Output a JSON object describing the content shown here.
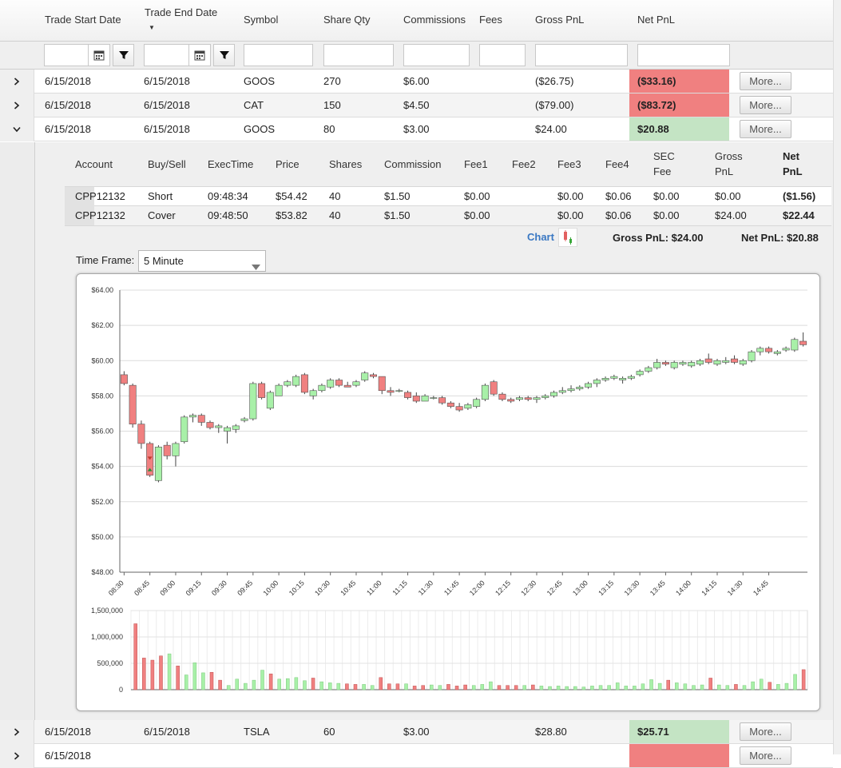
{
  "columns": {
    "trade_start": "Trade Start Date",
    "trade_end": "Trade End Date",
    "symbol": "Symbol",
    "share_qty": "Share Qty",
    "commissions": "Commissions",
    "fees": "Fees",
    "gross_pnl": "Gross PnL",
    "net_pnl": "Net PnL"
  },
  "rows": [
    {
      "start": "6/15/2018",
      "end": "6/15/2018",
      "symbol": "GOOS",
      "qty": "270",
      "comm": "$6.00",
      "fees": "",
      "gross": "($26.75)",
      "net": "($33.16)",
      "more": "More..."
    },
    {
      "start": "6/15/2018",
      "end": "6/15/2018",
      "symbol": "CAT",
      "qty": "150",
      "comm": "$4.50",
      "fees": "",
      "gross": "($79.00)",
      "net": "($83.72)",
      "more": "More..."
    },
    {
      "start": "6/15/2018",
      "end": "6/15/2018",
      "symbol": "GOOS",
      "qty": "80",
      "comm": "$3.00",
      "fees": "",
      "gross": "$24.00",
      "net": "$20.88",
      "more": "More..."
    },
    {
      "start": "6/15/2018",
      "end": "6/15/2018",
      "symbol": "TSLA",
      "qty": "60",
      "comm": "$3.00",
      "fees": "",
      "gross": "$28.80",
      "net": "$25.71",
      "more": "More..."
    },
    {
      "start": "6/15/2018",
      "end": "",
      "symbol": "",
      "qty": "",
      "comm": "",
      "fees": "",
      "gross": "",
      "net": "",
      "more": "More..."
    }
  ],
  "detail": {
    "headers": {
      "account": "Account",
      "buysell": "Buy/Sell",
      "exectime": "ExecTime",
      "price": "Price",
      "shares": "Shares",
      "commission": "Commission",
      "fee1": "Fee1",
      "fee2": "Fee2",
      "fee3": "Fee3",
      "fee4": "Fee4",
      "sec_fee_1": "SEC",
      "sec_fee_2": "Fee",
      "gross_1": "Gross",
      "gross_2": "PnL",
      "net_1": "Net",
      "net_2": "PnL"
    },
    "executions": [
      {
        "account": "CPP12132",
        "side": "Short",
        "time": "09:48:34",
        "price": "$54.42",
        "shares": "40",
        "commission": "$1.50",
        "fee1": "$0.00",
        "fee2": "",
        "fee3": "$0.00",
        "fee4": "$0.06",
        "sec": "$0.00",
        "gross": "$0.00",
        "net": "($1.56)"
      },
      {
        "account": "CPP12132",
        "side": "Cover",
        "time": "09:48:50",
        "price": "$53.82",
        "shares": "40",
        "commission": "$1.50",
        "fee1": "$0.00",
        "fee2": "",
        "fee3": "$0.00",
        "fee4": "$0.06",
        "sec": "$0.00",
        "gross": "$24.00",
        "net": "$22.44"
      }
    ],
    "chart_link": "Chart",
    "gross_summary": "Gross PnL: $24.00",
    "net_summary": "Net PnL: $20.88",
    "timeframe_label": "Time Frame:",
    "timeframe_value": "5 Minute"
  },
  "colors": {
    "loss": "#f08080",
    "gain": "#c4e4c4",
    "candle_up": "#a8f0a8",
    "candle_down": "#f08080",
    "link": "#3a78c3"
  },
  "chart_data": {
    "type": "candlestick",
    "price_axis": {
      "min": 48,
      "max": 64,
      "ticks": [
        "$48.00",
        "$50.00",
        "$52.00",
        "$54.00",
        "$56.00",
        "$58.00",
        "$60.00",
        "$62.00",
        "$64.00"
      ]
    },
    "volume_axis": {
      "min": 0,
      "max": 1500000,
      "ticks": [
        "0",
        "500,000",
        "1,000,000",
        "1,500,000"
      ]
    },
    "time_labels": [
      "08:30",
      "08:45",
      "09:00",
      "09:15",
      "09:30",
      "09:45",
      "10:00",
      "10:15",
      "10:30",
      "10:45",
      "11:00",
      "11:15",
      "11:30",
      "11:45",
      "12:00",
      "12:15",
      "12:30",
      "12:45",
      "13:00",
      "13:15",
      "13:30",
      "13:45",
      "14:00",
      "14:15",
      "14:30",
      "14:45"
    ],
    "grid": true,
    "candles": [
      [
        59.2,
        59.4,
        58.6,
        58.7
      ],
      [
        58.6,
        58.7,
        56.2,
        56.4
      ],
      [
        56.4,
        56.6,
        55.0,
        55.3
      ],
      [
        55.3,
        55.4,
        53.4,
        53.5
      ],
      [
        53.2,
        55.2,
        53.1,
        55.1
      ],
      [
        55.2,
        55.4,
        54.4,
        54.6
      ],
      [
        54.6,
        55.4,
        54.0,
        55.3
      ],
      [
        55.4,
        56.9,
        55.3,
        56.8
      ],
      [
        56.8,
        57.0,
        56.5,
        56.9
      ],
      [
        56.9,
        57.0,
        56.3,
        56.5
      ],
      [
        56.5,
        56.6,
        56.1,
        56.2
      ],
      [
        56.2,
        56.4,
        55.9,
        56.3
      ],
      [
        56.0,
        56.3,
        55.3,
        56.2
      ],
      [
        56.1,
        56.4,
        55.9,
        56.3
      ],
      [
        56.6,
        56.8,
        56.5,
        56.7
      ],
      [
        56.7,
        58.8,
        56.6,
        58.7
      ],
      [
        58.7,
        58.8,
        57.8,
        57.9
      ],
      [
        57.3,
        58.3,
        57.2,
        58.2
      ],
      [
        58.0,
        58.7,
        58.0,
        58.6
      ],
      [
        58.6,
        58.9,
        58.5,
        58.8
      ],
      [
        58.6,
        59.2,
        58.5,
        59.1
      ],
      [
        59.2,
        59.3,
        58.1,
        58.2
      ],
      [
        58.0,
        58.4,
        57.8,
        58.3
      ],
      [
        58.3,
        58.7,
        58.2,
        58.6
      ],
      [
        58.5,
        59.0,
        58.4,
        58.9
      ],
      [
        58.9,
        59.0,
        58.5,
        58.6
      ],
      [
        58.6,
        58.8,
        58.5,
        58.5
      ],
      [
        58.6,
        58.9,
        58.5,
        58.8
      ],
      [
        58.9,
        59.4,
        58.8,
        59.3
      ],
      [
        59.2,
        59.3,
        59.0,
        59.1
      ],
      [
        59.1,
        59.1,
        58.1,
        58.3
      ],
      [
        58.3,
        58.5,
        58.0,
        58.2
      ],
      [
        58.3,
        58.4,
        58.2,
        58.3
      ],
      [
        58.2,
        58.3,
        57.8,
        57.9
      ],
      [
        58.0,
        58.2,
        57.6,
        57.7
      ],
      [
        57.7,
        58.1,
        57.7,
        58.0
      ],
      [
        57.9,
        58.0,
        57.8,
        57.9
      ],
      [
        57.9,
        58.0,
        57.5,
        57.6
      ],
      [
        57.6,
        57.7,
        57.3,
        57.4
      ],
      [
        57.4,
        57.6,
        57.1,
        57.2
      ],
      [
        57.3,
        57.6,
        57.2,
        57.5
      ],
      [
        57.4,
        57.9,
        57.3,
        57.8
      ],
      [
        57.8,
        58.7,
        57.7,
        58.6
      ],
      [
        58.8,
        58.9,
        58.0,
        58.1
      ],
      [
        58.1,
        58.2,
        57.7,
        57.8
      ],
      [
        57.8,
        57.9,
        57.6,
        57.7
      ],
      [
        57.8,
        58.0,
        57.7,
        57.9
      ],
      [
        57.9,
        58.0,
        57.7,
        57.8
      ],
      [
        57.8,
        58.0,
        57.6,
        57.9
      ],
      [
        57.9,
        58.1,
        57.8,
        58.0
      ],
      [
        58.0,
        58.3,
        57.9,
        58.2
      ],
      [
        58.2,
        58.5,
        58.1,
        58.3
      ],
      [
        58.3,
        58.6,
        58.2,
        58.4
      ],
      [
        58.4,
        58.6,
        58.3,
        58.5
      ],
      [
        58.5,
        58.8,
        58.4,
        58.7
      ],
      [
        58.7,
        59.0,
        58.5,
        58.9
      ],
      [
        58.9,
        59.1,
        58.8,
        59.0
      ],
      [
        59.0,
        59.2,
        58.9,
        59.1
      ],
      [
        58.9,
        59.1,
        58.7,
        59.0
      ],
      [
        59.0,
        59.2,
        58.9,
        59.1
      ],
      [
        59.2,
        59.5,
        59.1,
        59.4
      ],
      [
        59.4,
        59.7,
        59.3,
        59.6
      ],
      [
        59.6,
        60.1,
        59.5,
        59.9
      ],
      [
        59.9,
        60.0,
        59.7,
        59.8
      ],
      [
        59.6,
        60.0,
        59.5,
        59.9
      ],
      [
        59.8,
        60.0,
        59.7,
        59.9
      ],
      [
        59.7,
        60.0,
        59.6,
        59.9
      ],
      [
        59.8,
        60.1,
        59.7,
        60.0
      ],
      [
        60.1,
        60.4,
        59.8,
        59.9
      ],
      [
        59.8,
        60.1,
        59.7,
        60.0
      ],
      [
        59.9,
        60.2,
        59.8,
        60.0
      ],
      [
        60.1,
        60.3,
        59.8,
        59.9
      ],
      [
        59.8,
        60.1,
        59.7,
        60.0
      ],
      [
        60.0,
        60.6,
        59.9,
        60.5
      ],
      [
        60.5,
        60.8,
        60.3,
        60.7
      ],
      [
        60.7,
        60.8,
        60.4,
        60.5
      ],
      [
        60.4,
        60.6,
        60.3,
        60.5
      ],
      [
        60.6,
        60.8,
        60.5,
        60.7
      ],
      [
        60.6,
        61.3,
        60.5,
        61.2
      ],
      [
        61.1,
        61.6,
        60.8,
        60.9
      ]
    ],
    "volume": [
      1250000,
      600000,
      560000,
      640000,
      680000,
      450000,
      280000,
      510000,
      320000,
      330000,
      180000,
      80000,
      200000,
      120000,
      180000,
      370000,
      300000,
      200000,
      210000,
      230000,
      170000,
      220000,
      150000,
      130000,
      120000,
      110000,
      100000,
      100000,
      80000,
      230000,
      110000,
      110000,
      110000,
      70000,
      80000,
      90000,
      80000,
      100000,
      70000,
      90000,
      80000,
      100000,
      150000,
      80000,
      80000,
      80000,
      80000,
      90000,
      70000,
      60000,
      70000,
      60000,
      60000,
      50000,
      70000,
      80000,
      80000,
      130000,
      70000,
      70000,
      110000,
      190000,
      120000,
      180000,
      130000,
      110000,
      80000,
      90000,
      220000,
      90000,
      80000,
      100000,
      80000,
      150000,
      200000,
      140000,
      100000,
      120000,
      290000,
      380000
    ],
    "markers": [
      {
        "type": "short",
        "price": 54.42,
        "time": "09:48:34"
      },
      {
        "type": "cover",
        "price": 53.82,
        "time": "09:48:50"
      }
    ]
  }
}
